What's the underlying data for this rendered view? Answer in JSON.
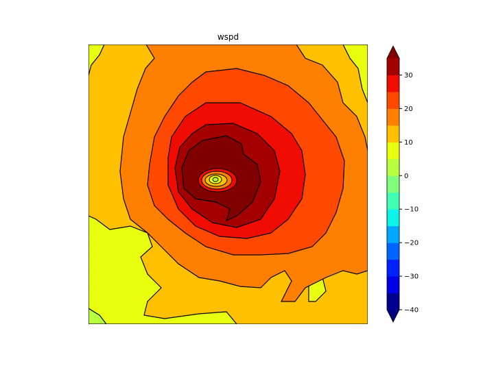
{
  "chart_data": {
    "type": "contourf",
    "title": "wspd",
    "xlabel": "",
    "ylabel": "",
    "levels": [
      -40,
      -35,
      -30,
      -25,
      -20,
      -15,
      -10,
      -5,
      0,
      5,
      10,
      15,
      20,
      25,
      30,
      35
    ],
    "extend": "both",
    "colorbar": {
      "location": "right",
      "ticks": [
        30,
        20,
        10,
        0,
        -10,
        -20,
        -30,
        -40
      ],
      "tick_labels": [
        "30",
        "20",
        "10",
        "0",
        "−10",
        "−20",
        "−30",
        "−40"
      ],
      "colors": [
        "#00008f",
        "#0000e4",
        "#0020ff",
        "#0064ff",
        "#00a8ff",
        "#0cf4ea",
        "#40ffb4",
        "#80ff7c",
        "#b8ff40",
        "#e8ff10",
        "#ffc000",
        "#ff8000",
        "#ff4800",
        "#f00c00",
        "#a40000"
      ],
      "under_color": "#000080",
      "over_color": "#800000"
    },
    "field_description_levels_present": [
      0,
      5,
      10,
      15,
      20,
      25,
      30,
      35
    ],
    "axes_ticks": "none"
  }
}
